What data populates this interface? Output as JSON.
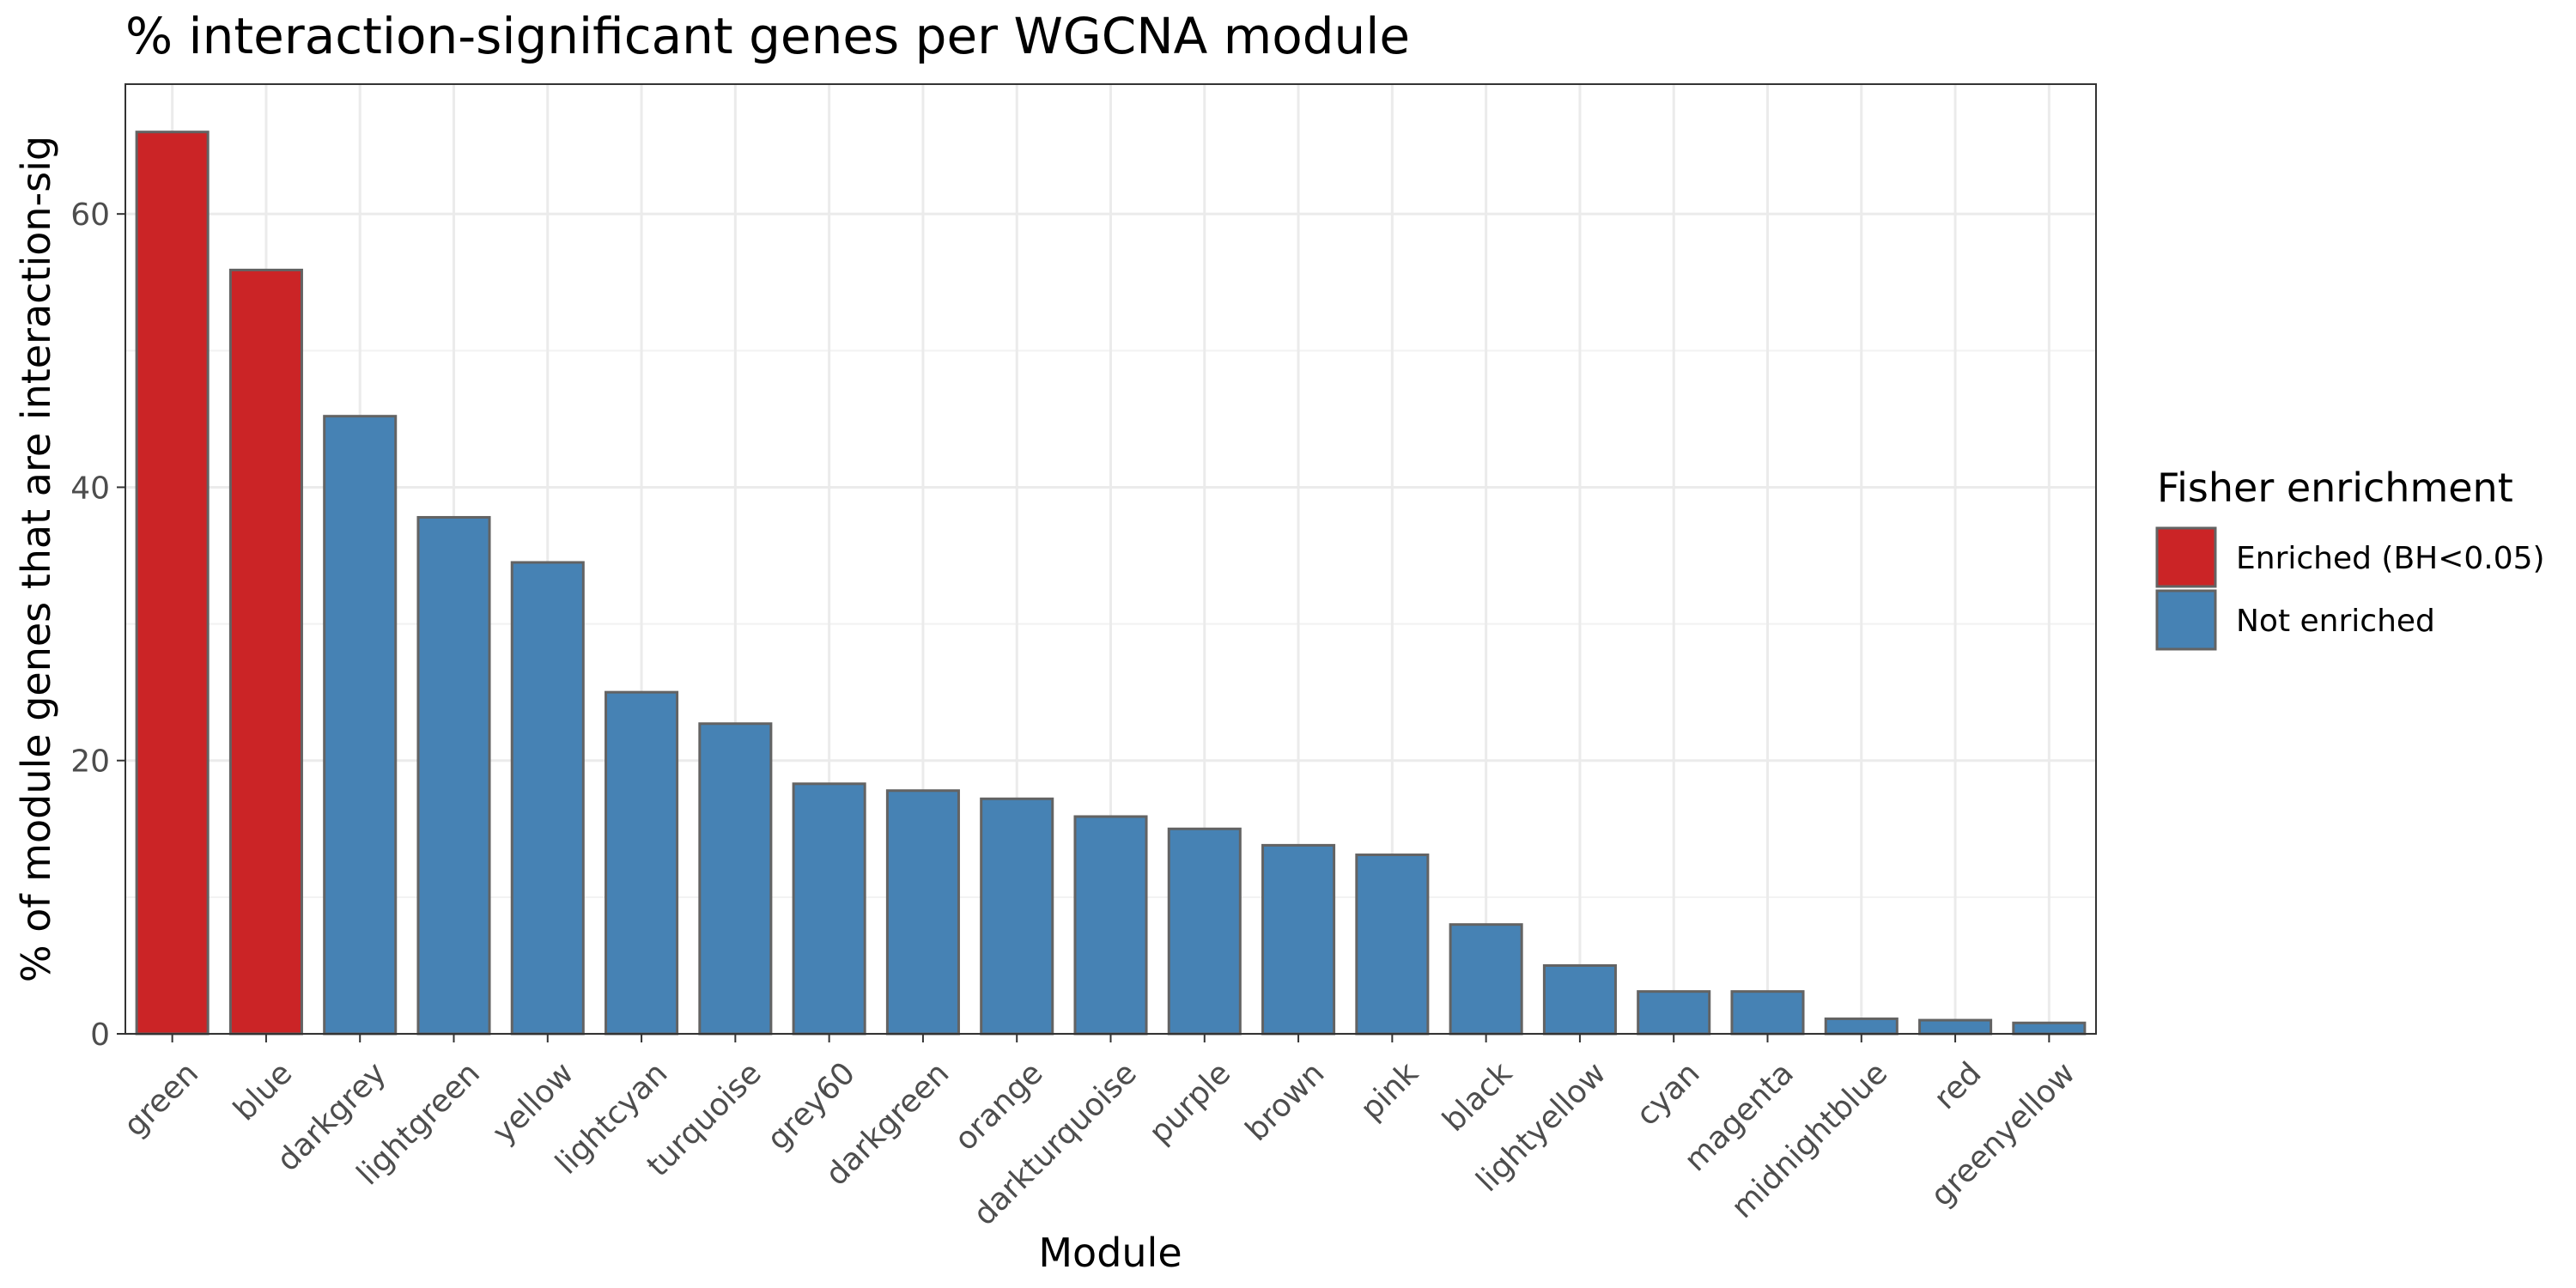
{
  "chart_data": {
    "type": "bar",
    "title": "% interaction-significant genes per WGCNA module",
    "xlabel": "Module",
    "ylabel": "% of module genes that are interaction-sig",
    "ylim": [
      0,
      69.5
    ],
    "yticks": [
      "0",
      "20",
      "40",
      "60"
    ],
    "grid": true,
    "legend": {
      "title": "Fisher enrichment",
      "placement": "right",
      "entries": [
        {
          "label": "Enriched (BH<0.05)",
          "color": "#cb2426"
        },
        {
          "label": "Not enriched",
          "color": "#4682b4"
        }
      ]
    },
    "bar_outline_color": "#636363",
    "categories": [
      "green",
      "blue",
      "darkgrey",
      "lightgreen",
      "yellow",
      "lightcyan",
      "turquoise",
      "grey60",
      "darkgreen",
      "orange",
      "darkturquoise",
      "purple",
      "brown",
      "pink",
      "black",
      "lightyellow",
      "cyan",
      "magenta",
      "midnightblue",
      "red",
      "greenyellow"
    ],
    "values": [
      66.0,
      55.9,
      45.2,
      37.8,
      34.5,
      25.0,
      22.7,
      18.3,
      17.8,
      17.2,
      15.9,
      15.0,
      13.8,
      13.1,
      8.0,
      5.0,
      3.1,
      3.1,
      1.1,
      1.0,
      0.8
    ],
    "enrichment": [
      "Enriched (BH<0.05)",
      "Enriched (BH<0.05)",
      "Not enriched",
      "Not enriched",
      "Not enriched",
      "Not enriched",
      "Not enriched",
      "Not enriched",
      "Not enriched",
      "Not enriched",
      "Not enriched",
      "Not enriched",
      "Not enriched",
      "Not enriched",
      "Not enriched",
      "Not enriched",
      "Not enriched",
      "Not enriched",
      "Not enriched",
      "Not enriched",
      "Not enriched"
    ]
  }
}
